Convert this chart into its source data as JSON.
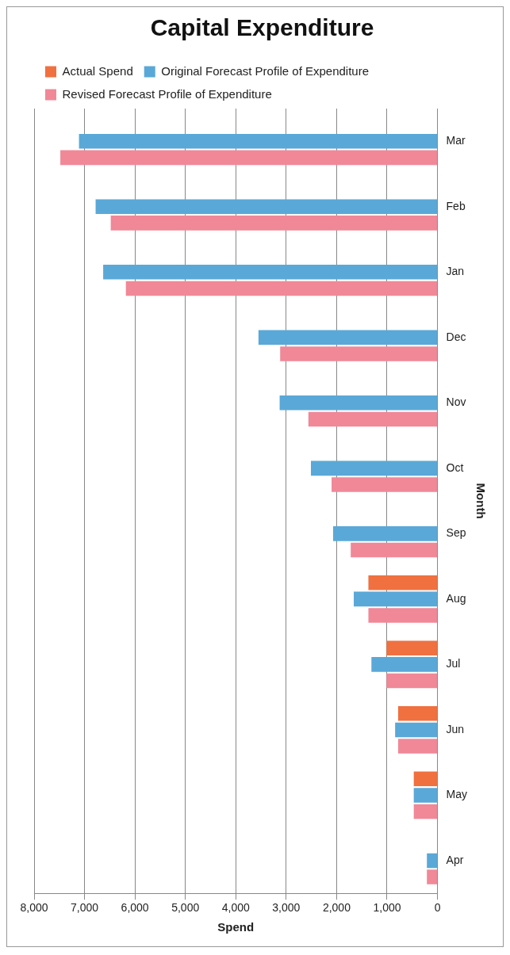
{
  "chart_data": {
    "type": "bar",
    "title": "Capital Expenditure",
    "xlabel": "Spend",
    "ylabel": "Month",
    "orientation": "horizontal",
    "categories": [
      "Mar",
      "Feb",
      "Jan",
      "Dec",
      "Nov",
      "Oct",
      "Sep",
      "Aug",
      "Jul",
      "Jun",
      "May",
      "Apr"
    ],
    "series": [
      {
        "name": "Actual Spend",
        "color": "#f07040",
        "values": [
          null,
          null,
          null,
          null,
          null,
          null,
          null,
          1370,
          1010,
          780,
          470,
          null
        ]
      },
      {
        "name": "Original Forecast Profile of Expenditure",
        "color": "#5aa8d8",
        "values": [
          7110,
          6780,
          6630,
          3550,
          3130,
          2510,
          2070,
          1660,
          1310,
          840,
          470,
          210
        ]
      },
      {
        "name": "Revised Forecast Profile of Expenditure",
        "color": "#f08898",
        "values": [
          7480,
          6480,
          6180,
          3120,
          2560,
          2100,
          1720,
          1370,
          1010,
          780,
          470,
          210
        ]
      }
    ],
    "xlim": [
      8000,
      0
    ],
    "xticks": [
      0,
      {
        "value": 1000,
        "label": "1,000"
      },
      {
        "value": 2000,
        "label": "2,000"
      },
      {
        "value": 3000,
        "label": "3,000"
      },
      {
        "value": 4000,
        "label": "4,000"
      },
      {
        "value": 5000,
        "label": "5,000"
      },
      {
        "value": 6000,
        "label": "6,000"
      },
      {
        "value": 7000,
        "label": "7,000"
      },
      {
        "value": 8000,
        "label": "8,000"
      }
    ],
    "grid": "x",
    "legend": "top"
  }
}
